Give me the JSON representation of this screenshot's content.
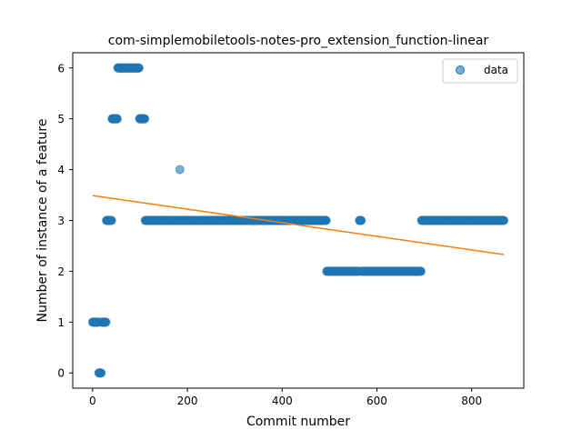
{
  "chart_data": {
    "type": "scatter",
    "title": "com-simplemobiletools-notes-pro_extension_function-linear",
    "xlabel": "Commit number",
    "ylabel": "Number of instance of a feature",
    "xlim": [
      -42,
      910
    ],
    "ylim": [
      -0.3,
      6.3
    ],
    "xticks": [
      0,
      200,
      400,
      600,
      800
    ],
    "yticks": [
      0,
      1,
      2,
      3,
      4,
      5,
      6
    ],
    "grid": false,
    "legend": {
      "placement": "top-right",
      "entries": [
        "data"
      ]
    },
    "colors": {
      "points": "#1f77b4",
      "fit_line": "#ff7f0e"
    },
    "segments": [
      {
        "x_start": 0,
        "x_end": 12,
        "step": 1,
        "y": 1
      },
      {
        "x_start": 13,
        "x_end": 18,
        "step": 1,
        "y": 0
      },
      {
        "x_start": 19,
        "x_end": 28,
        "step": 1,
        "y": 1
      },
      {
        "x_start": 29,
        "x_end": 40,
        "step": 1,
        "y": 3
      },
      {
        "x_start": 41,
        "x_end": 52,
        "step": 1,
        "y": 5
      },
      {
        "x_start": 53,
        "x_end": 98,
        "step": 1,
        "y": 6
      },
      {
        "x_start": 99,
        "x_end": 110,
        "step": 1,
        "y": 5
      },
      {
        "x_start": 111,
        "x_end": 183,
        "step": 1,
        "y": 3
      },
      {
        "x_start": 184,
        "x_end": 184,
        "step": 1,
        "y": 4
      },
      {
        "x_start": 185,
        "x_end": 493,
        "step": 1,
        "y": 3
      },
      {
        "x_start": 494,
        "x_end": 562,
        "step": 1,
        "y": 2
      },
      {
        "x_start": 563,
        "x_end": 567,
        "step": 1,
        "y": 3
      },
      {
        "x_start": 568,
        "x_end": 693,
        "step": 1,
        "y": 2
      },
      {
        "x_start": 694,
        "x_end": 868,
        "step": 1,
        "y": 3
      }
    ],
    "fit_line": {
      "x": [
        0,
        868
      ],
      "y": [
        3.49,
        2.33
      ]
    }
  }
}
